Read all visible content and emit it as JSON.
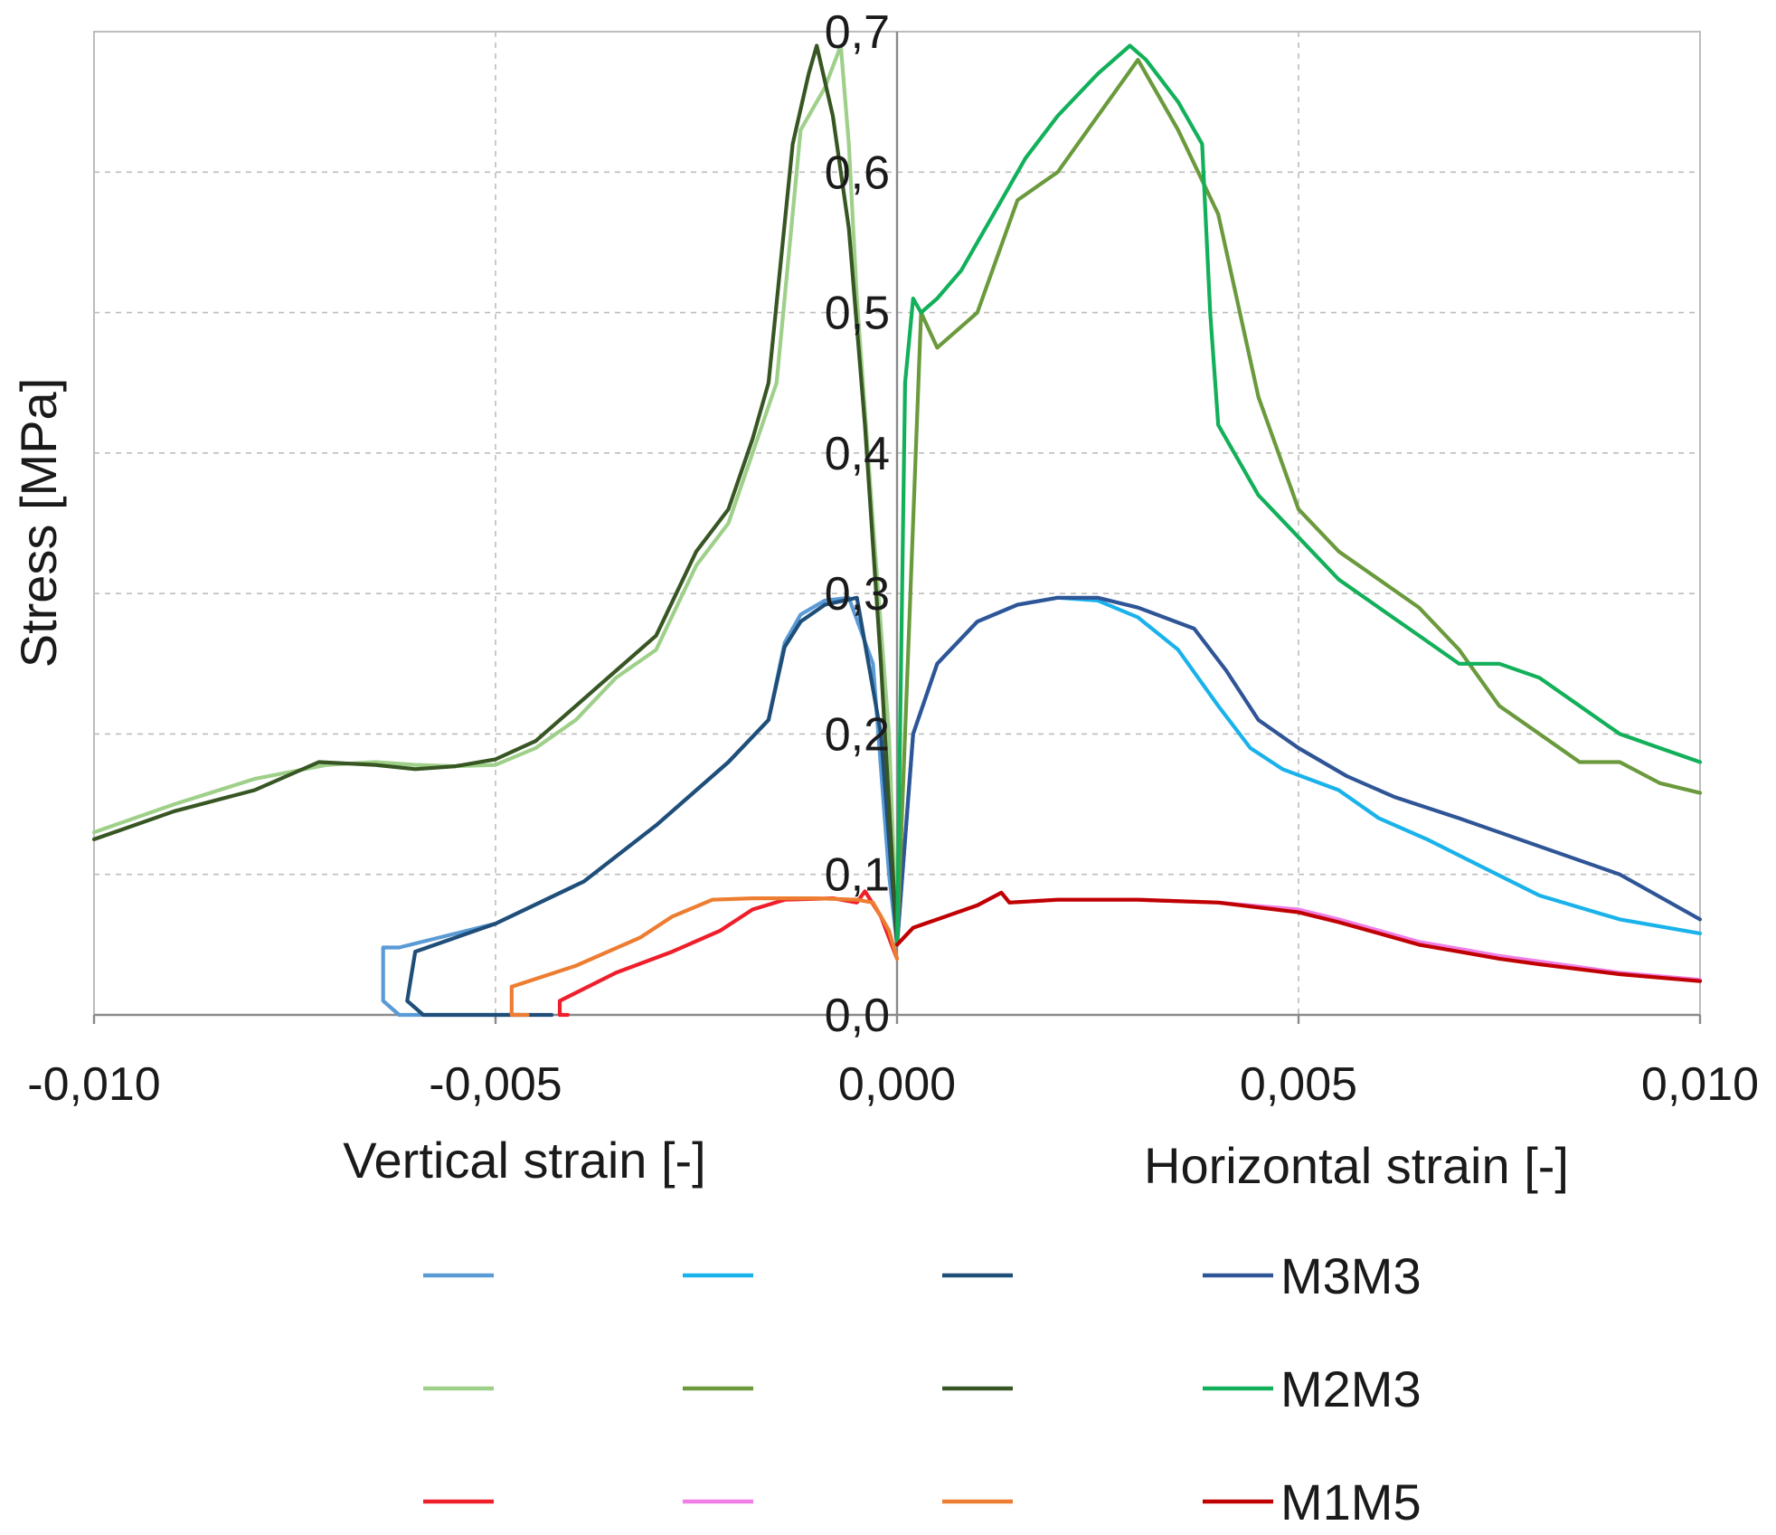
{
  "chart_data": {
    "type": "line",
    "ylabel": "Stress [MPa]",
    "xlabel_left": "Vertical strain [-]",
    "xlabel_right": "Horizontal strain [-]",
    "xlim": [
      -0.01,
      0.01
    ],
    "ylim": [
      0.0,
      0.7
    ],
    "x_ticks": [
      -0.01,
      -0.005,
      0.0,
      0.005,
      0.01
    ],
    "x_tick_labels": [
      "-0,010",
      "-0,005",
      "0,000",
      "0,005",
      "0,010"
    ],
    "y_ticks": [
      0.0,
      0.1,
      0.2,
      0.3,
      0.4,
      0.5,
      0.6,
      0.7
    ],
    "y_tick_labels": [
      "0,0",
      "0,1",
      "0,2",
      "0,3",
      "0,4",
      "0,5",
      "0,6",
      "0,7"
    ],
    "grid": true,
    "legend_position": "bottom",
    "series": [
      {
        "name": "",
        "color": "#5b9bd5",
        "x": [
          -0.0047,
          -0.0062,
          -0.0064,
          -0.0064,
          -0.0062,
          -0.005,
          -0.0039,
          -0.003,
          -0.0021,
          -0.0016,
          -0.0014,
          -0.0012,
          -0.0009,
          -0.0006,
          -0.0003,
          -0.0001,
          0.0
        ],
        "y": [
          0.0,
          0.0,
          0.01,
          0.048,
          0.048,
          0.065,
          0.095,
          0.135,
          0.18,
          0.21,
          0.265,
          0.285,
          0.295,
          0.297,
          0.25,
          0.1,
          0.05
        ]
      },
      {
        "name": "",
        "color": "#1ab2ea",
        "x": [
          0.0,
          0.0002,
          0.0005,
          0.001,
          0.0015,
          0.002,
          0.0025,
          0.003,
          0.0035,
          0.004,
          0.0044,
          0.0048,
          0.0055,
          0.006,
          0.0066,
          0.0073,
          0.008,
          0.009,
          0.01
        ],
        "y": [
          0.05,
          0.2,
          0.25,
          0.28,
          0.292,
          0.297,
          0.295,
          0.283,
          0.26,
          0.22,
          0.19,
          0.175,
          0.16,
          0.14,
          0.125,
          0.105,
          0.085,
          0.068,
          0.058
        ]
      },
      {
        "name": "",
        "color": "#1f4e79",
        "x": [
          -0.0043,
          -0.0059,
          -0.0061,
          -0.006,
          -0.005,
          -0.0039,
          -0.003,
          -0.0021,
          -0.0016,
          -0.0014,
          -0.0012,
          -0.0009,
          -0.0005,
          -0.0002,
          0.0
        ],
        "y": [
          0.0,
          0.0,
          0.01,
          0.045,
          0.065,
          0.095,
          0.135,
          0.18,
          0.21,
          0.262,
          0.28,
          0.292,
          0.297,
          0.2,
          0.05
        ]
      },
      {
        "name": "M3M3",
        "color": "#2f5597",
        "x": [
          0.0,
          0.0002,
          0.0005,
          0.001,
          0.0015,
          0.002,
          0.0025,
          0.003,
          0.0037,
          0.0041,
          0.0045,
          0.005,
          0.0056,
          0.0062,
          0.007,
          0.008,
          0.009,
          0.01
        ],
        "y": [
          0.05,
          0.2,
          0.25,
          0.28,
          0.292,
          0.297,
          0.297,
          0.29,
          0.275,
          0.245,
          0.21,
          0.19,
          0.17,
          0.155,
          0.14,
          0.12,
          0.1,
          0.068
        ]
      },
      {
        "name": "",
        "color": "#9fd08a",
        "x": [
          -0.01,
          -0.009,
          -0.008,
          -0.0071,
          -0.0065,
          -0.006,
          -0.0055,
          -0.005,
          -0.0045,
          -0.004,
          -0.0035,
          -0.003,
          -0.0025,
          -0.0021,
          -0.0018,
          -0.0015,
          -0.0012,
          -0.0009,
          -0.0007,
          -0.0006,
          -0.0005,
          -0.0003,
          -0.0001,
          0.0
        ],
        "y": [
          0.13,
          0.15,
          0.168,
          0.178,
          0.18,
          0.178,
          0.177,
          0.178,
          0.19,
          0.21,
          0.24,
          0.26,
          0.32,
          0.35,
          0.4,
          0.45,
          0.63,
          0.66,
          0.69,
          0.62,
          0.51,
          0.35,
          0.2,
          0.05
        ]
      },
      {
        "name": "",
        "color": "#6a9a3c",
        "x": [
          0.0,
          0.0003,
          0.0005,
          0.001,
          0.0015,
          0.002,
          0.0025,
          0.003,
          0.0035,
          0.004,
          0.0045,
          0.005,
          0.0055,
          0.006,
          0.0065,
          0.007,
          0.0075,
          0.008,
          0.0085,
          0.009,
          0.0095,
          0.01
        ],
        "y": [
          0.05,
          0.5,
          0.475,
          0.5,
          0.58,
          0.6,
          0.64,
          0.68,
          0.63,
          0.57,
          0.44,
          0.36,
          0.33,
          0.31,
          0.29,
          0.26,
          0.22,
          0.2,
          0.18,
          0.18,
          0.165,
          0.158
        ]
      },
      {
        "name": "",
        "color": "#375623",
        "x": [
          -0.01,
          -0.009,
          -0.008,
          -0.0072,
          -0.0065,
          -0.006,
          -0.0055,
          -0.005,
          -0.0045,
          -0.004,
          -0.0035,
          -0.003,
          -0.0025,
          -0.0021,
          -0.0018,
          -0.0016,
          -0.0013,
          -0.0011,
          -0.001,
          -0.0008,
          -0.0006,
          -0.0004,
          -0.0002,
          0.0
        ],
        "y": [
          0.125,
          0.145,
          0.16,
          0.18,
          0.178,
          0.175,
          0.177,
          0.182,
          0.195,
          0.22,
          0.245,
          0.27,
          0.33,
          0.36,
          0.41,
          0.45,
          0.62,
          0.67,
          0.69,
          0.64,
          0.56,
          0.42,
          0.25,
          0.05
        ]
      },
      {
        "name": "M2M3",
        "color": "#12b05a",
        "x": [
          0.0,
          0.0001,
          0.0002,
          0.0003,
          0.0005,
          0.0008,
          0.0012,
          0.0016,
          0.002,
          0.0025,
          0.0029,
          0.0031,
          0.0035,
          0.0038,
          0.0039,
          0.004,
          0.0045,
          0.005,
          0.0055,
          0.006,
          0.0065,
          0.007,
          0.0075,
          0.008,
          0.0085,
          0.009,
          0.0095,
          0.01
        ],
        "y": [
          0.05,
          0.45,
          0.51,
          0.5,
          0.51,
          0.53,
          0.57,
          0.61,
          0.64,
          0.67,
          0.69,
          0.68,
          0.65,
          0.62,
          0.5,
          0.42,
          0.37,
          0.34,
          0.31,
          0.29,
          0.27,
          0.25,
          0.25,
          0.24,
          0.22,
          0.2,
          0.19,
          0.18
        ]
      },
      {
        "name": "",
        "color": "#ee1f2a",
        "x": [
          -0.0041,
          -0.0042,
          -0.0042,
          -0.0035,
          -0.0028,
          -0.0022,
          -0.0018,
          -0.0014,
          -0.0008,
          -0.0005,
          -0.0004,
          -0.0002,
          0.0
        ],
        "y": [
          0.0,
          0.0,
          0.01,
          0.03,
          0.045,
          0.06,
          0.075,
          0.082,
          0.083,
          0.08,
          0.088,
          0.07,
          0.04
        ]
      },
      {
        "name": "",
        "color": "#f07ee6",
        "x": [
          0.0,
          0.0002,
          0.0006,
          0.001,
          0.0013,
          0.0014,
          0.002,
          0.003,
          0.004,
          0.005,
          0.0055,
          0.006,
          0.0065,
          0.007,
          0.0075,
          0.008,
          0.009,
          0.01
        ],
        "y": [
          0.05,
          0.062,
          0.07,
          0.078,
          0.087,
          0.08,
          0.082,
          0.082,
          0.08,
          0.075,
          0.068,
          0.06,
          0.052,
          0.047,
          0.042,
          0.038,
          0.03,
          0.025
        ]
      },
      {
        "name": "",
        "color": "#ed7d31",
        "x": [
          -0.0046,
          -0.0048,
          -0.0048,
          -0.004,
          -0.0032,
          -0.0028,
          -0.0023,
          -0.0018,
          -0.001,
          -0.0005,
          -0.0003,
          -0.0001,
          0.0
        ],
        "y": [
          0.0,
          0.0,
          0.02,
          0.035,
          0.055,
          0.07,
          0.082,
          0.083,
          0.083,
          0.082,
          0.08,
          0.06,
          0.04
        ]
      },
      {
        "name": "M1M5",
        "color": "#c00000",
        "x": [
          0.0,
          0.0002,
          0.0006,
          0.001,
          0.0013,
          0.0014,
          0.002,
          0.003,
          0.004,
          0.005,
          0.0055,
          0.006,
          0.0065,
          0.007,
          0.0075,
          0.008,
          0.009,
          0.01
        ],
        "y": [
          0.05,
          0.062,
          0.07,
          0.078,
          0.087,
          0.08,
          0.082,
          0.082,
          0.08,
          0.073,
          0.066,
          0.058,
          0.05,
          0.045,
          0.04,
          0.036,
          0.029,
          0.024
        ]
      }
    ]
  }
}
